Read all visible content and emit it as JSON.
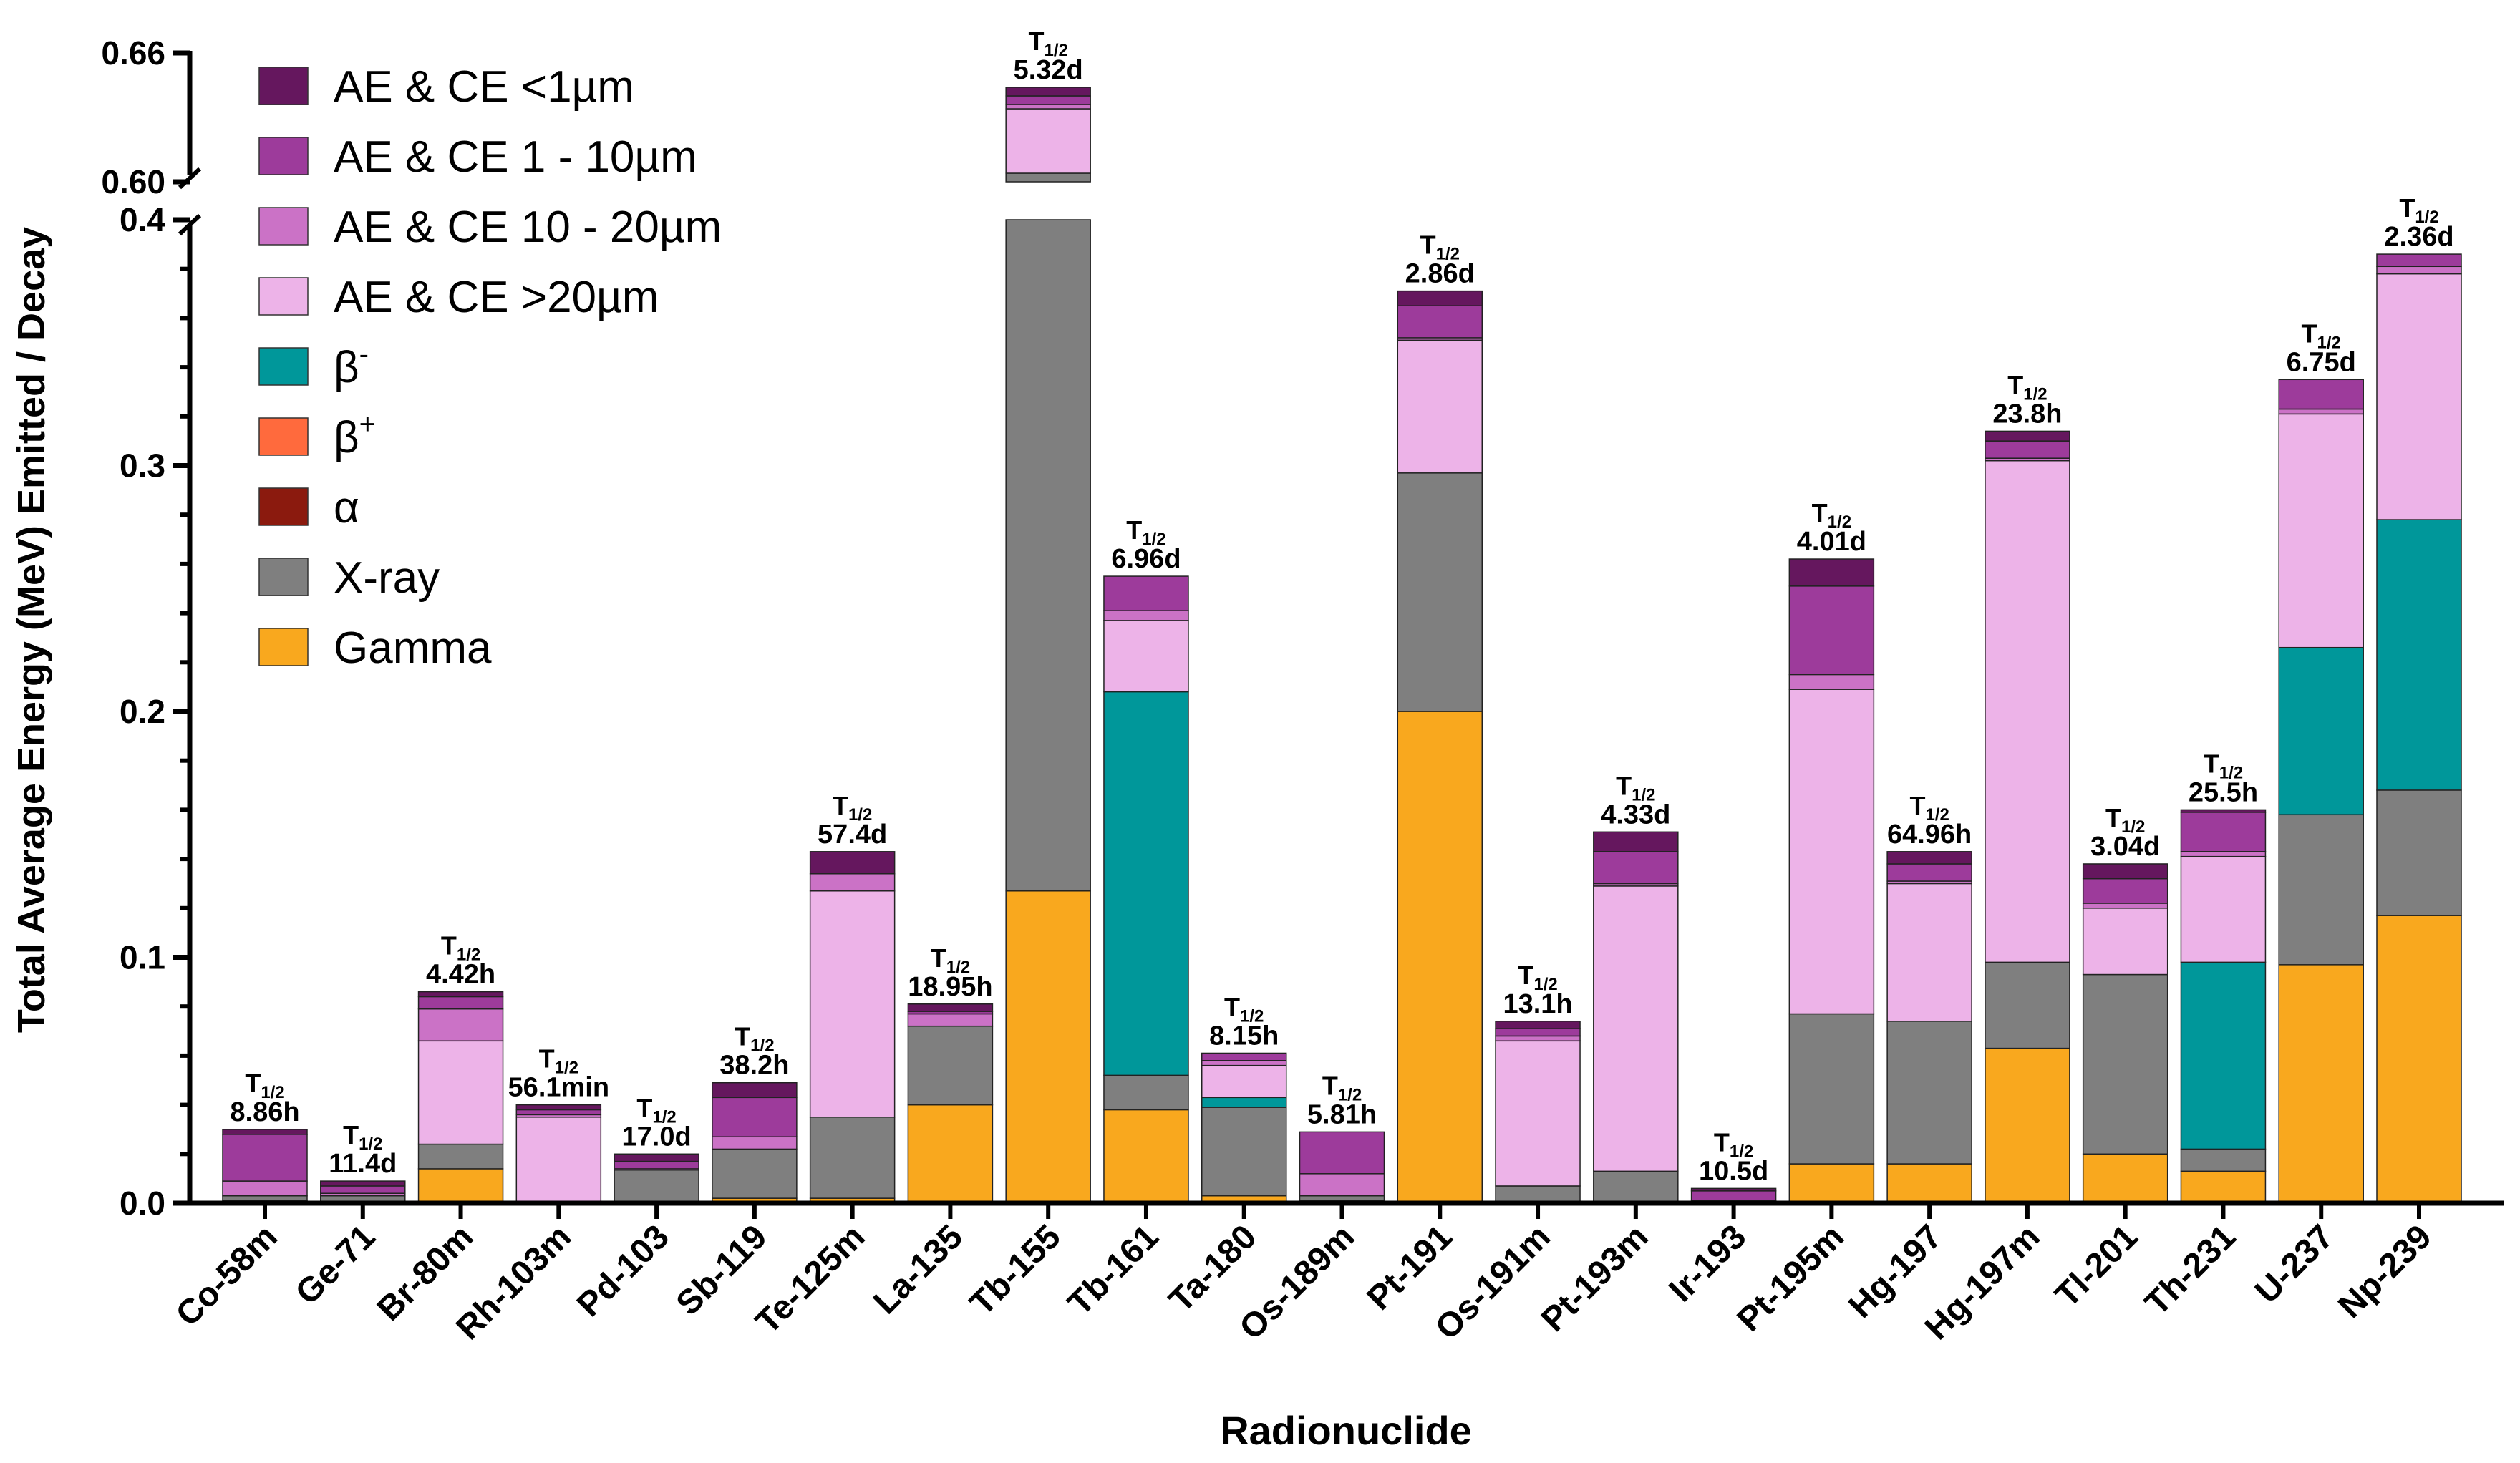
{
  "chart_data": {
    "type": "bar",
    "stacked": true,
    "xlabel": "Radionuclide",
    "ylabel": "Total Average Energy (MeV) Emitted / Decay",
    "y_axis_break": {
      "lower_range": [
        0,
        0.4
      ],
      "upper_range": [
        0.6,
        0.66
      ]
    },
    "yticks": [
      "0.0",
      "0.1",
      "0.2",
      "0.3",
      "0.4",
      "0.60",
      "0.66"
    ],
    "ytick_values": [
      0,
      0.1,
      0.2,
      0.3,
      0.4,
      0.6,
      0.66
    ],
    "legend_position": "top-left",
    "half_life_prefix": "T",
    "half_life_sub": "1/2",
    "categories": [
      "Co-58m",
      "Ge-71",
      "Br-80m",
      "Rh-103m",
      "Pd-103",
      "Sb-119",
      "Te-125m",
      "La-135",
      "Tb-155",
      "Tb-161",
      "Ta-180",
      "Os-189m",
      "Pt-191",
      "Os-191m",
      "Pt-193m",
      "Ir-193",
      "Pt-195m",
      "Hg-197",
      "Hg-197m",
      "Tl-201",
      "Th-231",
      "U-237",
      "Np-239"
    ],
    "half_lives": [
      "8.86h",
      "11.4d",
      "4.42h",
      "56.1min",
      "17.0d",
      "38.2h",
      "57.4d",
      "18.95h",
      "5.32d",
      "6.96d",
      "8.15h",
      "5.81h",
      "2.86d",
      "13.1h",
      "4.33d",
      "10.5d",
      "4.01d",
      "64.96h",
      "23.8h",
      "3.04d",
      "25.5h",
      "6.75d",
      "2.36d"
    ],
    "series": [
      {
        "name": "Gamma",
        "color": "#F9A81E",
        "values": [
          0.001,
          0,
          0.014,
          0,
          0,
          0.002,
          0.002,
          0.04,
          0.127,
          0.038,
          0.003,
          0.001,
          0.2,
          0,
          0,
          0,
          0.016,
          0.016,
          0.063,
          0.02,
          0.013,
          0.097,
          0.117
        ]
      },
      {
        "name": "X-ray",
        "color": "#7F7F7F",
        "values": [
          0.002,
          0.003,
          0.01,
          0,
          0.0135,
          0.02,
          0.033,
          0.032,
          0.477,
          0.014,
          0.036,
          0.002,
          0.097,
          0.007,
          0.013,
          0.001,
          0.061,
          0.058,
          0.035,
          0.073,
          0.009,
          0.061,
          0.051
        ]
      },
      {
        "name": "α",
        "color": "#8B1A0E",
        "values": [
          0,
          0,
          0,
          0,
          0,
          0,
          0,
          0,
          0,
          0,
          0,
          0,
          0,
          0,
          0,
          0,
          0,
          0,
          0,
          0,
          0,
          0,
          0
        ]
      },
      {
        "name": "β+",
        "color": "#FF6A3D",
        "values": [
          0,
          0,
          0,
          0,
          0,
          0,
          0,
          0,
          0,
          0,
          0,
          0,
          0,
          0,
          0,
          0,
          0,
          0,
          0,
          0,
          0,
          0,
          0
        ]
      },
      {
        "name": "β-",
        "color": "#00979A",
        "values": [
          0,
          0,
          0,
          0,
          0,
          0,
          0,
          0,
          0,
          0.156,
          0.004,
          0,
          0,
          0,
          0,
          0,
          0,
          0,
          0,
          0,
          0.076,
          0.068,
          0.11
        ]
      },
      {
        "name": "AE & CE >20µm",
        "color": "#EDB3E8",
        "values": [
          0,
          0,
          0.042,
          0.035,
          0,
          0,
          0.092,
          0,
          0.03,
          0.029,
          0.013,
          0,
          0.054,
          0.059,
          0.116,
          0,
          0.132,
          0.056,
          0.204,
          0.027,
          0.043,
          0.095,
          0.1
        ]
      },
      {
        "name": "AE & CE 10 - 20µm",
        "color": "#CB72C6",
        "values": [
          0.006,
          0.001,
          0.013,
          0.001,
          0.0005,
          0.005,
          0.007,
          0.005,
          0.002,
          0.004,
          0.002,
          0.009,
          0.001,
          0.002,
          0.001,
          0,
          0.006,
          0.001,
          0.001,
          0.002,
          0.002,
          0.002,
          0.003
        ]
      },
      {
        "name": "AE & CE 1 - 10µm",
        "color": "#9D3B9B",
        "values": [
          0.019,
          0.003,
          0.005,
          0.002,
          0.003,
          0.016,
          0,
          0.001,
          0.004,
          0.014,
          0.003,
          0.017,
          0.013,
          0.003,
          0.013,
          0.004,
          0.036,
          0.007,
          0.007,
          0.01,
          0.016,
          0.012,
          0.005
        ]
      },
      {
        "name": "AE & CE <1µm",
        "color": "#65175E",
        "values": [
          0.002,
          0.002,
          0.002,
          0.002,
          0.003,
          0.006,
          0.009,
          0.003,
          0.004,
          0,
          0,
          0,
          0.006,
          0.003,
          0.008,
          0.001,
          0.011,
          0.005,
          0.004,
          0.006,
          0.001,
          0,
          0
        ]
      }
    ],
    "legend_order": [
      "AE & CE <1µm",
      "AE & CE 1 - 10µm",
      "AE & CE 10 - 20µm",
      "AE & CE >20µm",
      "β-",
      "β+",
      "α",
      "X-ray",
      "Gamma"
    ]
  }
}
